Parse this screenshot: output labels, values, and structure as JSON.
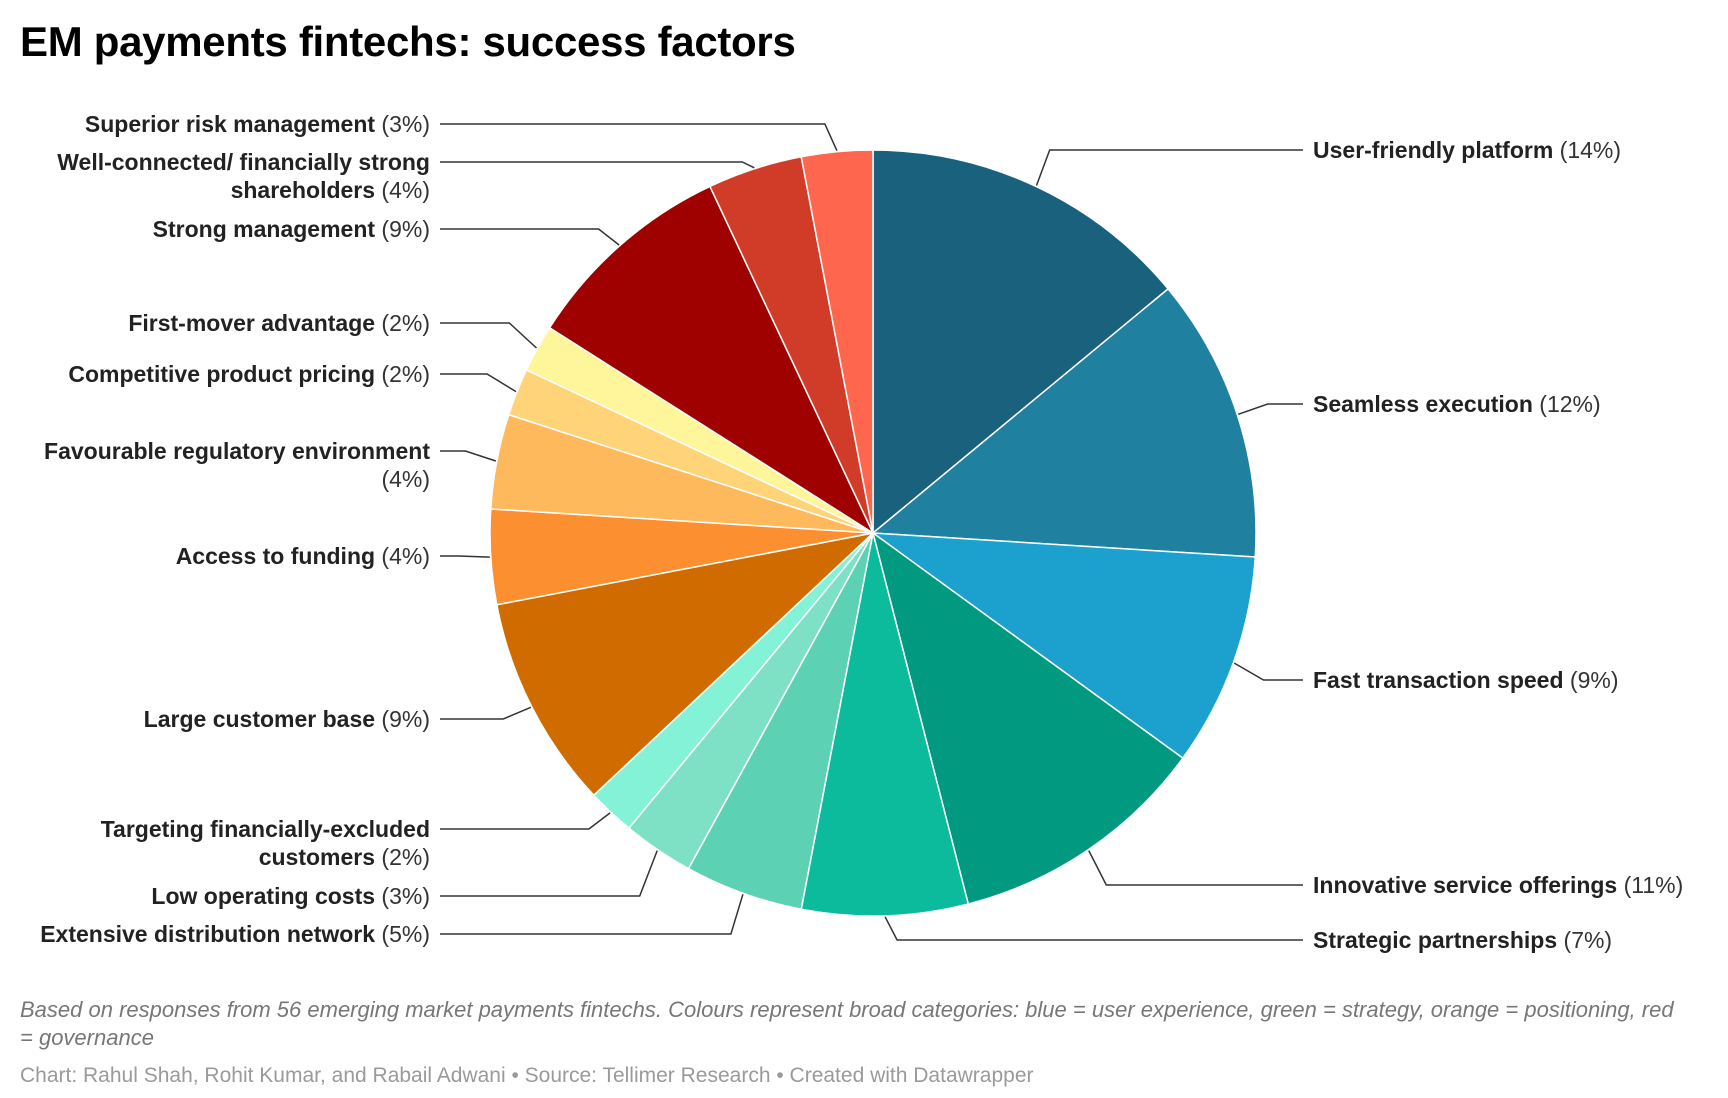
{
  "title": "EM payments fintechs: success factors",
  "description": "Based on responses from 56 emerging market payments fintechs. Colours represent broad categories: blue = user experience, green = strategy, orange = positioning, red = governance",
  "credit": "Chart: Rahul Shah, Rohit Kumar, and Rabail Adwani • Source: Tellimer Research • Created with Datawrapper",
  "chart_data": {
    "type": "pie",
    "title": "EM payments fintechs: success factors",
    "unit": "%",
    "order": "clockwise from 12 o'clock",
    "slices": [
      {
        "name": "User-friendly platform",
        "value": 14,
        "lines": [
          "User-friendly platform"
        ],
        "color": "#1a617e",
        "side": "right"
      },
      {
        "name": "Seamless execution",
        "value": 12,
        "lines": [
          "Seamless execution"
        ],
        "color": "#2080a0",
        "side": "right"
      },
      {
        "name": "Fast transaction speed",
        "value": 9,
        "lines": [
          "Fast transaction speed"
        ],
        "color": "#1ca1ce",
        "side": "right"
      },
      {
        "name": "Innovative service offerings",
        "value": 11,
        "lines": [
          "Innovative service offerings"
        ],
        "color": "#019980",
        "side": "right"
      },
      {
        "name": "Strategic partnerships",
        "value": 7,
        "lines": [
          "Strategic partnerships"
        ],
        "color": "#0bbb9c",
        "side": "right"
      },
      {
        "name": "Extensive distribution network",
        "value": 5,
        "lines": [
          "Extensive distribution network"
        ],
        "color": "#5cd1b4",
        "side": "left"
      },
      {
        "name": "Low operating costs",
        "value": 3,
        "lines": [
          "Low operating costs"
        ],
        "color": "#7ee0c5",
        "side": "left"
      },
      {
        "name": "Targeting financially-excluded customers",
        "value": 2,
        "lines": [
          "Targeting financially-excluded",
          "customers"
        ],
        "color": "#83f2d6",
        "side": "left"
      },
      {
        "name": "Large customer base",
        "value": 9,
        "lines": [
          "Large customer base"
        ],
        "color": "#d06b00",
        "side": "left"
      },
      {
        "name": "Access to funding",
        "value": 4,
        "lines": [
          "Access to funding"
        ],
        "color": "#fc8f2f",
        "side": "left"
      },
      {
        "name": "Favourable regulatory environment",
        "value": 4,
        "lines": [
          "Favourable regulatory environment",
          ""
        ],
        "color": "#fdb95b",
        "side": "left"
      },
      {
        "name": "Competitive product pricing",
        "value": 2,
        "lines": [
          "Competitive product pricing"
        ],
        "color": "#ffd478",
        "side": "left"
      },
      {
        "name": "First-mover advantage",
        "value": 2,
        "lines": [
          "First-mover advantage"
        ],
        "color": "#fff59b",
        "side": "left"
      },
      {
        "name": "Strong management",
        "value": 9,
        "lines": [
          "Strong management"
        ],
        "color": "#9f0000",
        "side": "left"
      },
      {
        "name": "Well-connected/ financially strong shareholders",
        "value": 4,
        "lines": [
          "Well-connected/ financially strong",
          "shareholders"
        ],
        "color": "#d13c28",
        "side": "left"
      },
      {
        "name": "Superior risk management",
        "value": 3,
        "lines": [
          "Superior risk management"
        ],
        "color": "#fe664d",
        "side": "left"
      }
    ]
  }
}
